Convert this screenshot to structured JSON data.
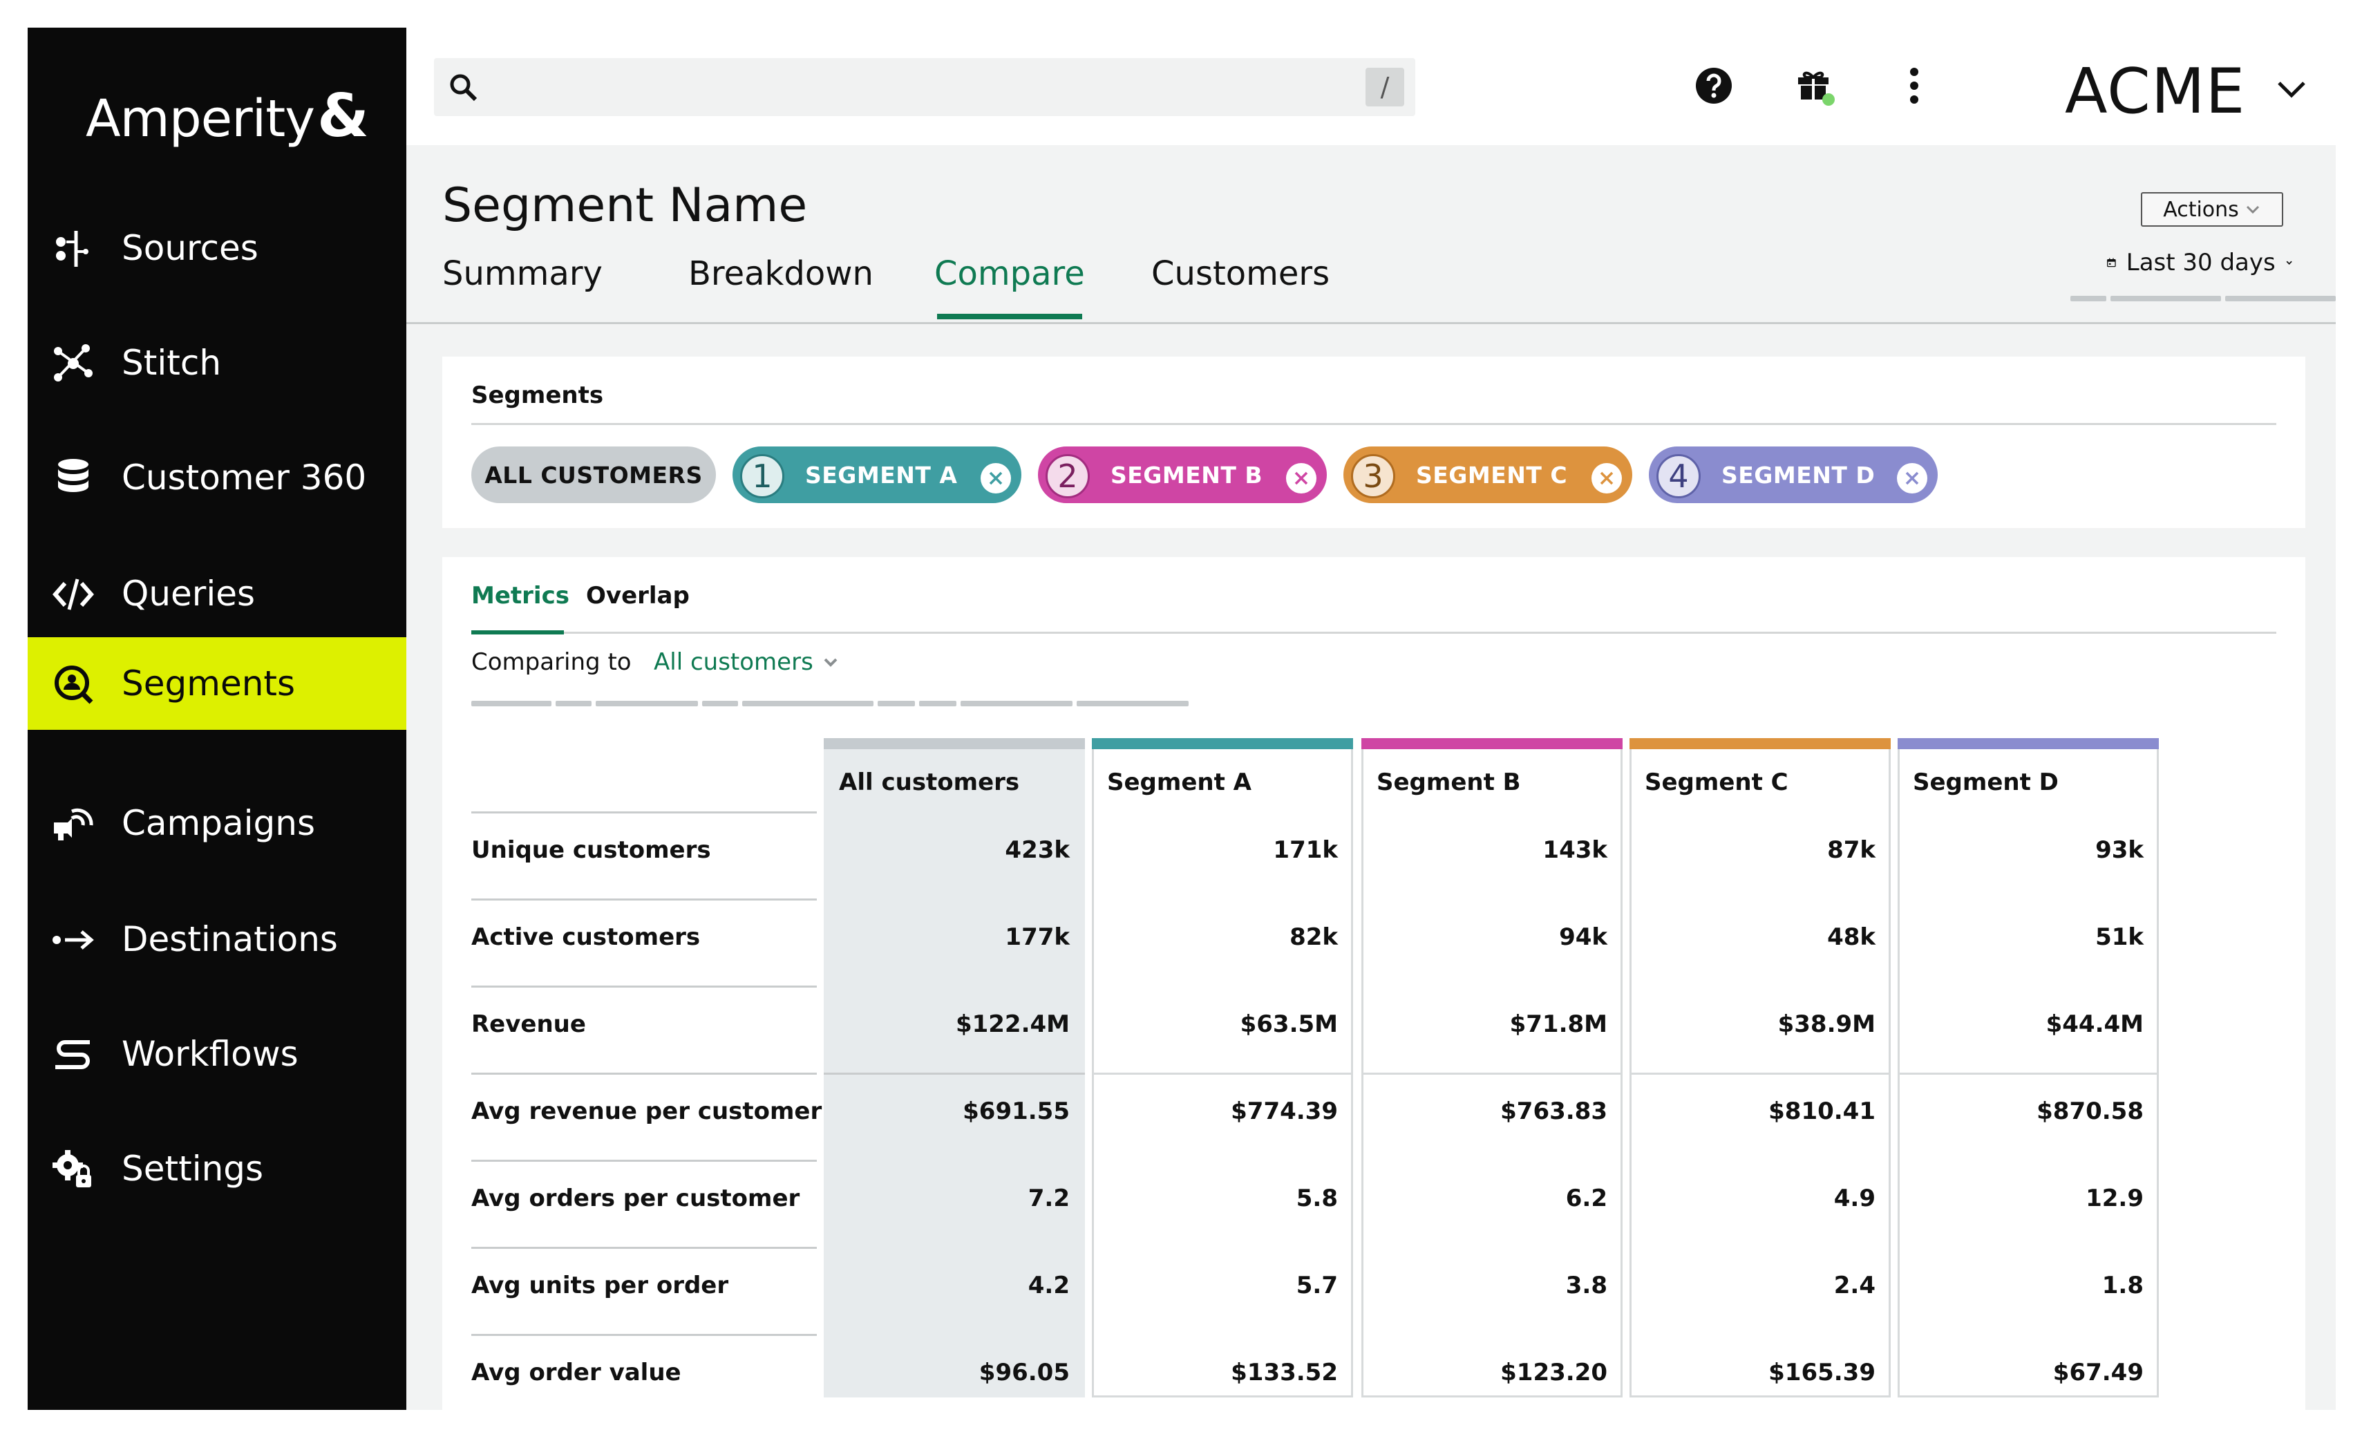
{
  "app": {
    "logo": "Amperity",
    "logo_mark": "&"
  },
  "sidebar": {
    "items": [
      {
        "label": "Sources",
        "icon": "sources-icon"
      },
      {
        "label": "Stitch",
        "icon": "stitch-icon"
      },
      {
        "label": "Customer 360",
        "icon": "database-icon"
      },
      {
        "label": "Queries",
        "icon": "code-icon"
      },
      {
        "label": "Segments",
        "icon": "segments-icon",
        "active": true
      },
      {
        "label": "Campaigns",
        "icon": "campaigns-icon"
      },
      {
        "label": "Destinations",
        "icon": "destinations-icon"
      },
      {
        "label": "Workflows",
        "icon": "workflows-icon"
      },
      {
        "label": "Settings",
        "icon": "settings-icon"
      }
    ]
  },
  "topbar": {
    "search_placeholder": "",
    "search_shortcut": "/",
    "org_name": "ACME"
  },
  "page": {
    "title": "Segment Name",
    "tabs": [
      "Summary",
      "Breakdown",
      "Compare",
      "Customers"
    ],
    "active_tab": "Compare",
    "actions_label": "Actions",
    "date_filter": "Last 30 days"
  },
  "segments_panel": {
    "heading": "Segments",
    "pills": [
      {
        "label": "ALL CUSTOMERS"
      },
      {
        "num": "1",
        "label": "SEGMENT A",
        "color": "#3f9ea2"
      },
      {
        "num": "2",
        "label": "SEGMENT B",
        "color": "#cf45a4"
      },
      {
        "num": "3",
        "label": "SEGMENT C",
        "color": "#dd933e"
      },
      {
        "num": "4",
        "label": "SEGMENT D",
        "color": "#8a8ccf"
      }
    ]
  },
  "metrics_panel": {
    "tabs": [
      "Metrics",
      "Overlap"
    ],
    "active_tab": "Metrics",
    "comparing_label": "Comparing to",
    "comparing_value": "All customers",
    "columns": [
      "All customers",
      "Segment A",
      "Segment B",
      "Segment C",
      "Segment D"
    ],
    "column_colors": [
      "#c5cbcf",
      "#3f9ea2",
      "#cf45a4",
      "#dd933e",
      "#8a8ccf"
    ],
    "rows": [
      {
        "label": "Unique customers",
        "values": [
          "423k",
          "171k",
          "143k",
          "87k",
          "93k"
        ]
      },
      {
        "label": "Active customers",
        "values": [
          "177k",
          "82k",
          "94k",
          "48k",
          "51k"
        ]
      },
      {
        "label": "Revenue",
        "values": [
          "$122.4M",
          "$63.5M",
          "$71.8M",
          "$38.9M",
          "$44.4M"
        ]
      },
      {
        "label": "Avg revenue per customer",
        "values": [
          "$691.55",
          "$774.39",
          "$763.83",
          "$810.41",
          "$870.58"
        ]
      },
      {
        "label": "Avg orders per customer",
        "values": [
          "7.2",
          "5.8",
          "6.2",
          "4.9",
          "12.9"
        ]
      },
      {
        "label": "Avg units per order",
        "values": [
          "4.2",
          "5.7",
          "3.8",
          "2.4",
          "1.8"
        ]
      },
      {
        "label": "Avg order value",
        "values": [
          "$96.05",
          "$133.52",
          "$123.20",
          "$165.39",
          "$67.49"
        ]
      }
    ]
  }
}
